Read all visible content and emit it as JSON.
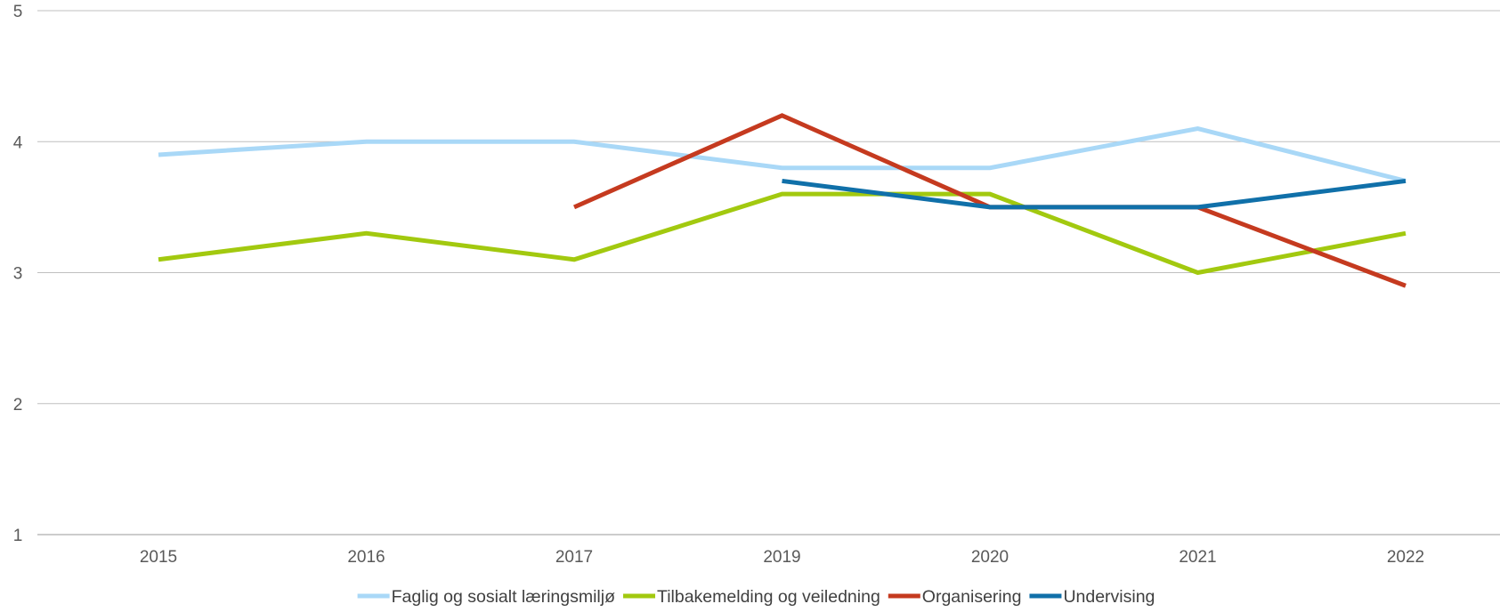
{
  "chart_data": {
    "type": "line",
    "title": "",
    "xlabel": "",
    "ylabel": "",
    "categories": [
      "2015",
      "2016",
      "2017",
      "2019",
      "2020",
      "2021",
      "2022"
    ],
    "ylim": [
      1,
      5
    ],
    "yticks": [
      1,
      2,
      3,
      4,
      5
    ],
    "grid": "horizontal",
    "legend_position": "bottom",
    "series": [
      {
        "name": "Faglig og sosialt læringsmiljø",
        "color": "#a9d8f7",
        "values": [
          3.9,
          4.0,
          4.0,
          3.8,
          3.8,
          4.1,
          3.7
        ]
      },
      {
        "name": "Tilbakemelding og veiledning",
        "color": "#a2c90f",
        "values": [
          3.1,
          3.3,
          3.1,
          3.6,
          3.6,
          3.0,
          3.3
        ]
      },
      {
        "name": "Organisering",
        "color": "#c53a1f",
        "values": [
          null,
          null,
          3.5,
          4.2,
          3.5,
          3.5,
          2.9
        ]
      },
      {
        "name": "Undervising",
        "color": "#1070a9",
        "values": [
          null,
          null,
          null,
          3.7,
          3.5,
          3.5,
          3.7
        ]
      }
    ]
  }
}
